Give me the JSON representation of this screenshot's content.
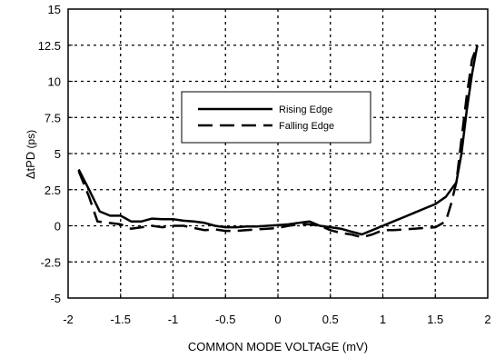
{
  "chart_data": {
    "type": "line",
    "title": "",
    "xlabel": "COMMON MODE VOLTAGE (mV)",
    "ylabel": {
      "delta": "Δ",
      "main": "tPD",
      "unit": " (ps)"
    },
    "xlim": [
      -2,
      2
    ],
    "ylim": [
      -5,
      15
    ],
    "xticks": [
      -2,
      -1.5,
      -1,
      -0.5,
      0,
      0.5,
      1,
      1.5,
      2
    ],
    "xtick_labels": [
      "-2",
      "-1.5",
      "-1",
      "-0.5",
      "0",
      "0.5",
      "1",
      "1.5",
      "2"
    ],
    "yticks": [
      -5,
      -2.5,
      0,
      2.5,
      5,
      7.5,
      10,
      12.5,
      15
    ],
    "ytick_labels": [
      "-5",
      "-2.5",
      "0",
      "2.5",
      "5",
      "7.5",
      "10",
      "12.5",
      "15"
    ],
    "grid": true,
    "legend_position": "center-left",
    "series": [
      {
        "name": "Rising Edge",
        "style": "solid",
        "color": "#000000",
        "x": [
          -1.9,
          -1.8,
          -1.7,
          -1.6,
          -1.5,
          -1.4,
          -1.3,
          -1.2,
          -1.1,
          -1.0,
          -0.9,
          -0.8,
          -0.7,
          -0.6,
          -0.5,
          -0.4,
          -0.3,
          -0.2,
          -0.1,
          0.0,
          0.1,
          0.2,
          0.3,
          0.4,
          0.5,
          0.6,
          0.7,
          0.8,
          0.9,
          1.0,
          1.1,
          1.2,
          1.3,
          1.4,
          1.5,
          1.6,
          1.7,
          1.75,
          1.8,
          1.85,
          1.9
        ],
        "y": [
          3.9,
          2.5,
          1.0,
          0.7,
          0.7,
          0.3,
          0.3,
          0.5,
          0.45,
          0.45,
          0.35,
          0.3,
          0.2,
          0.0,
          -0.1,
          -0.1,
          -0.05,
          -0.05,
          0.0,
          0.05,
          0.1,
          0.2,
          0.3,
          0.0,
          -0.1,
          -0.2,
          -0.4,
          -0.6,
          -0.3,
          0.0,
          0.3,
          0.6,
          0.9,
          1.2,
          1.5,
          2.0,
          3.0,
          5.0,
          8.0,
          10.5,
          12.5
        ]
      },
      {
        "name": "Falling Edge",
        "style": "dashed",
        "color": "#000000",
        "x": [
          -1.9,
          -1.8,
          -1.72,
          -1.5,
          -1.4,
          -1.3,
          -1.2,
          -1.1,
          -1.0,
          -0.9,
          -0.8,
          -0.7,
          -0.6,
          -0.5,
          -0.4,
          -0.3,
          -0.2,
          -0.1,
          0.0,
          0.1,
          0.2,
          0.3,
          0.4,
          0.5,
          0.6,
          0.7,
          0.8,
          0.9,
          1.0,
          1.1,
          1.2,
          1.3,
          1.4,
          1.5,
          1.6,
          1.65,
          1.7,
          1.75,
          1.8,
          1.85,
          1.9
        ],
        "y": [
          3.8,
          2.0,
          0.3,
          0.1,
          -0.2,
          -0.1,
          0.0,
          -0.1,
          0.0,
          0.0,
          -0.15,
          -0.3,
          -0.25,
          -0.35,
          -0.35,
          -0.3,
          -0.25,
          -0.2,
          -0.15,
          0.0,
          0.1,
          0.1,
          0.0,
          -0.3,
          -0.5,
          -0.6,
          -0.8,
          -0.6,
          -0.3,
          -0.3,
          -0.25,
          -0.2,
          -0.15,
          -0.1,
          0.3,
          1.5,
          3.0,
          6.0,
          9.0,
          11.5,
          12.5
        ]
      }
    ]
  }
}
